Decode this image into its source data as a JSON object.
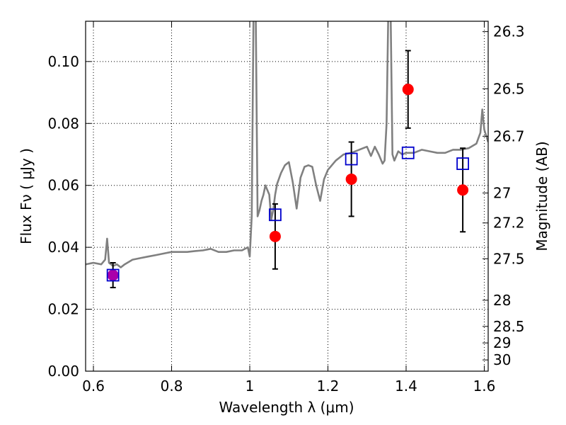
{
  "chart_data": {
    "type": "scatter",
    "xlabel": "Wavelength  λ (μm)",
    "ylabel": "Flux  Fν ( μJy )",
    "y2label": "Magnitude (AB)",
    "xlim": [
      0.58,
      1.61
    ],
    "ylim": [
      0.0,
      0.113
    ],
    "x_ticks": [
      0.6,
      0.8,
      1.0,
      1.2,
      1.4,
      1.6
    ],
    "x_tick_labels": [
      "0.6",
      "0.8",
      "1",
      "1.2",
      "1.4",
      "1.6"
    ],
    "y_ticks": [
      0.0,
      0.02,
      0.04,
      0.06,
      0.08,
      0.1
    ],
    "y_tick_labels": [
      "0.00",
      "0.02",
      "0.04",
      "0.06",
      "0.08",
      "0.10"
    ],
    "mag_ticks": [
      26.3,
      26.5,
      26.7,
      27,
      27.2,
      27.5,
      28,
      28.5,
      29,
      30
    ],
    "mag_tick_labels": [
      "26.3",
      "26.5",
      "26.7",
      "27",
      "27.2",
      "27.5",
      "28",
      "28.5",
      "29",
      "30"
    ],
    "grid": true,
    "colors": {
      "model": "#808080",
      "observed": "#ff0000",
      "model_photometry": "#0000cc",
      "first_point": "#aa00aa"
    },
    "model_spectrum": {
      "x": [
        0.58,
        0.6,
        0.62,
        0.63,
        0.635,
        0.64,
        0.65,
        0.66,
        0.67,
        0.68,
        0.7,
        0.72,
        0.74,
        0.76,
        0.78,
        0.8,
        0.82,
        0.84,
        0.86,
        0.88,
        0.9,
        0.92,
        0.94,
        0.96,
        0.98,
        0.995,
        1.0,
        1.005,
        1.01,
        1.015,
        1.02,
        1.025,
        1.03,
        1.035,
        1.04,
        1.05,
        1.055,
        1.06,
        1.065,
        1.07,
        1.08,
        1.09,
        1.1,
        1.11,
        1.12,
        1.13,
        1.14,
        1.15,
        1.16,
        1.17,
        1.18,
        1.19,
        1.2,
        1.22,
        1.24,
        1.26,
        1.28,
        1.3,
        1.31,
        1.32,
        1.33,
        1.34,
        1.345,
        1.35,
        1.355,
        1.36,
        1.365,
        1.37,
        1.38,
        1.39,
        1.4,
        1.42,
        1.44,
        1.46,
        1.48,
        1.5,
        1.52,
        1.54,
        1.56,
        1.58,
        1.59,
        1.595,
        1.6,
        1.61
      ],
      "y": [
        0.0345,
        0.035,
        0.0345,
        0.036,
        0.0428,
        0.035,
        0.034,
        0.0345,
        0.0335,
        0.0345,
        0.036,
        0.0365,
        0.037,
        0.0375,
        0.038,
        0.0385,
        0.0385,
        0.0385,
        0.0388,
        0.039,
        0.0395,
        0.0385,
        0.0385,
        0.039,
        0.039,
        0.04,
        0.037,
        0.05,
        0.12,
        0.12,
        0.05,
        0.052,
        0.055,
        0.057,
        0.06,
        0.057,
        0.049,
        0.052,
        0.057,
        0.0605,
        0.064,
        0.0665,
        0.0675,
        0.061,
        0.0525,
        0.0625,
        0.066,
        0.0665,
        0.066,
        0.06,
        0.055,
        0.062,
        0.065,
        0.068,
        0.07,
        0.0705,
        0.0715,
        0.0725,
        0.0695,
        0.0725,
        0.07,
        0.067,
        0.068,
        0.08,
        0.12,
        0.12,
        0.07,
        0.068,
        0.071,
        0.07,
        0.0705,
        0.0705,
        0.0715,
        0.071,
        0.0705,
        0.0705,
        0.0715,
        0.0715,
        0.072,
        0.0735,
        0.077,
        0.0845,
        0.078,
        0.074
      ]
    },
    "observed": [
      {
        "x": 0.65,
        "y": 0.031,
        "yerr": 0.004
      },
      {
        "x": 1.065,
        "y": 0.0435,
        "yerr": 0.0105
      },
      {
        "x": 1.26,
        "y": 0.062,
        "yerr": 0.012
      },
      {
        "x": 1.405,
        "y": 0.091,
        "yerr": 0.0125
      },
      {
        "x": 1.545,
        "y": 0.0585,
        "yerr": 0.0135
      }
    ],
    "model_photometry": [
      {
        "x": 0.65,
        "y": 0.031
      },
      {
        "x": 1.065,
        "y": 0.0505
      },
      {
        "x": 1.26,
        "y": 0.0685
      },
      {
        "x": 1.405,
        "y": 0.0705
      },
      {
        "x": 1.545,
        "y": 0.067
      }
    ]
  }
}
